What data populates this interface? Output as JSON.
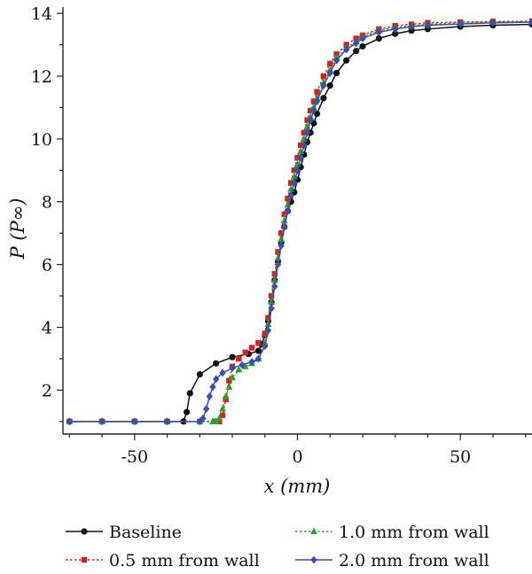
{
  "chart_data": {
    "type": "line",
    "title": "",
    "xlabel": "x (mm)",
    "ylabel": "P (P∞)",
    "xlim": [
      -72,
      72
    ],
    "ylim": [
      0.6,
      14.2
    ],
    "xticks": [
      -50,
      0,
      50
    ],
    "yticks": [
      2,
      4,
      6,
      8,
      10,
      12,
      14
    ],
    "grid": false,
    "legend_position": "bottom",
    "series": [
      {
        "name": "Baseline",
        "color": "#111111",
        "dash": "solid",
        "marker": "circle",
        "x": [
          -70,
          -60,
          -50,
          -40,
          -35,
          -34,
          -33,
          -30,
          -25,
          -20,
          -15,
          -12,
          -11,
          -10,
          -9,
          -8,
          -7,
          -6,
          -5,
          -4,
          -3,
          -2,
          -1,
          0,
          1,
          2,
          3,
          4,
          5,
          6,
          8,
          10,
          12,
          15,
          18,
          20,
          25,
          30,
          35,
          40,
          50,
          60,
          72
        ],
        "y": [
          1.0,
          1.0,
          1.0,
          1.0,
          1.0,
          1.3,
          1.9,
          2.5,
          2.85,
          3.05,
          3.15,
          3.25,
          3.45,
          3.75,
          4.2,
          4.8,
          5.5,
          6.1,
          6.7,
          7.2,
          7.7,
          8.0,
          8.3,
          8.7,
          9.1,
          9.5,
          9.9,
          10.2,
          10.5,
          10.8,
          11.3,
          11.7,
          12.1,
          12.5,
          12.8,
          12.95,
          13.2,
          13.35,
          13.45,
          13.5,
          13.58,
          13.62,
          13.65
        ]
      },
      {
        "name": "0.5 mm from wall",
        "color": "#d62020",
        "dash": "dotted",
        "marker": "square",
        "x": [
          -70,
          -60,
          -50,
          -40,
          -30,
          -25,
          -24,
          -23,
          -22,
          -21,
          -20,
          -18,
          -16,
          -14,
          -12,
          -10,
          -9,
          -8,
          -7,
          -6,
          -5,
          -4,
          -3,
          -2,
          -1,
          0,
          1,
          2,
          3,
          4,
          5,
          6,
          8,
          10,
          12,
          15,
          18,
          20,
          25,
          30,
          35,
          40,
          50,
          60,
          72
        ],
        "y": [
          1.0,
          1.0,
          1.0,
          1.0,
          1.0,
          1.0,
          1.0,
          1.2,
          1.7,
          2.3,
          2.75,
          3.0,
          3.2,
          3.35,
          3.5,
          3.8,
          4.3,
          5.0,
          5.7,
          6.4,
          7.0,
          7.6,
          8.1,
          8.6,
          9.0,
          9.4,
          9.8,
          10.2,
          10.6,
          10.9,
          11.2,
          11.5,
          12.0,
          12.4,
          12.7,
          13.0,
          13.2,
          13.3,
          13.5,
          13.6,
          13.65,
          13.7,
          13.72,
          13.74,
          13.75
        ]
      },
      {
        "name": "1.0 mm from wall",
        "color": "#2ca02c",
        "dash": "dotted",
        "marker": "triangle",
        "x": [
          -70,
          -60,
          -50,
          -40,
          -30,
          -26,
          -25,
          -24,
          -23,
          -22,
          -21,
          -20,
          -18,
          -16,
          -14,
          -12,
          -10,
          -9,
          -8,
          -7,
          -6,
          -5,
          -4,
          -3,
          -2,
          -1,
          0,
          1,
          2,
          3,
          4,
          5,
          6,
          8,
          10,
          12,
          15,
          18,
          20,
          25,
          30,
          35,
          40,
          50,
          60,
          72
        ],
        "y": [
          1.0,
          1.0,
          1.0,
          1.0,
          1.0,
          1.0,
          1.0,
          1.1,
          1.4,
          1.8,
          2.1,
          2.4,
          2.65,
          2.75,
          2.85,
          3.0,
          3.5,
          4.1,
          4.8,
          5.5,
          6.2,
          6.8,
          7.4,
          7.9,
          8.4,
          8.8,
          9.2,
          9.6,
          10.0,
          10.4,
          10.7,
          11.0,
          11.3,
          11.8,
          12.2,
          12.6,
          12.9,
          13.1,
          13.25,
          13.45,
          13.55,
          13.6,
          13.65,
          13.7,
          13.72,
          13.73
        ]
      },
      {
        "name": "2.0 mm from wall",
        "color": "#3a4fb0",
        "dash": "solid",
        "marker": "diamond",
        "x": [
          -70,
          -60,
          -50,
          -40,
          -30,
          -29,
          -28,
          -27,
          -26,
          -25,
          -23,
          -20,
          -17,
          -14,
          -12,
          -10,
          -9,
          -8,
          -7,
          -6,
          -5,
          -4,
          -3,
          -2,
          -1,
          0,
          1,
          2,
          3,
          4,
          5,
          6,
          8,
          10,
          12,
          15,
          18,
          20,
          25,
          30,
          35,
          40,
          50,
          60,
          72
        ],
        "y": [
          1.0,
          1.0,
          1.0,
          1.0,
          1.0,
          1.1,
          1.4,
          1.8,
          2.1,
          2.35,
          2.55,
          2.7,
          2.8,
          2.9,
          3.0,
          3.4,
          3.9,
          4.6,
          5.3,
          6.0,
          6.6,
          7.2,
          7.7,
          8.2,
          8.6,
          9.0,
          9.4,
          9.8,
          10.2,
          10.6,
          10.9,
          11.2,
          11.7,
          12.1,
          12.5,
          12.85,
          13.05,
          13.2,
          13.4,
          13.5,
          13.58,
          13.62,
          13.66,
          13.7,
          13.72
        ]
      }
    ]
  }
}
